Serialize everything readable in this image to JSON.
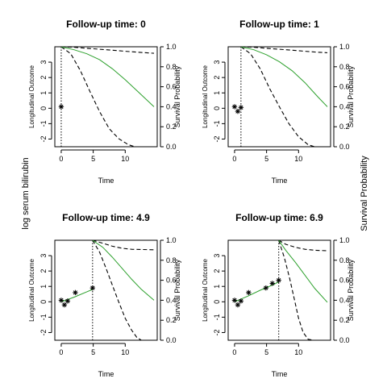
{
  "outer_left_label": "log serum bilirubin",
  "outer_right_label": "Survival Probability",
  "chart_data": [
    {
      "type": "line",
      "title": "Follow-up time: 0",
      "xlabel": "Time",
      "ylabel_left": "Longitudinal Outcome",
      "ylabel_right": "Survival Probability",
      "xlim": [
        -1,
        15
      ],
      "ylim_left": [
        -2.5,
        4
      ],
      "ylim_right": [
        0,
        1
      ],
      "x_ticks": [
        0,
        5,
        10
      ],
      "y_ticks_left": [
        -2,
        -1,
        0,
        1,
        2,
        3
      ],
      "y_ticks_right": [
        0.0,
        0.2,
        0.4,
        0.6,
        0.8,
        1.0
      ],
      "followup_time": 0,
      "observations": [
        {
          "x": 0,
          "y": 0.1
        }
      ],
      "longitudinal_fit": [],
      "survival_mean": [
        [
          0,
          1.0
        ],
        [
          2,
          0.97
        ],
        [
          4,
          0.93
        ],
        [
          6,
          0.87
        ],
        [
          8,
          0.78
        ],
        [
          10,
          0.67
        ],
        [
          12,
          0.55
        ],
        [
          14,
          0.43
        ],
        [
          14.5,
          0.4
        ]
      ],
      "survival_upper": [
        [
          0,
          1.0
        ],
        [
          2,
          0.995
        ],
        [
          4,
          0.985
        ],
        [
          6,
          0.975
        ],
        [
          8,
          0.965
        ],
        [
          10,
          0.955
        ],
        [
          12,
          0.945
        ],
        [
          14.5,
          0.935
        ]
      ],
      "survival_lower": [
        [
          0,
          1.0
        ],
        [
          1.5,
          0.93
        ],
        [
          3,
          0.76
        ],
        [
          4.5,
          0.55
        ],
        [
          6,
          0.35
        ],
        [
          7.5,
          0.18
        ],
        [
          9,
          0.08
        ],
        [
          10.5,
          0.02
        ],
        [
          11.5,
          0.0
        ]
      ]
    },
    {
      "type": "line",
      "title": "Follow-up time: 1",
      "xlabel": "Time",
      "ylabel_left": "Longitudinal Outcome",
      "ylabel_right": "Survival Probability",
      "xlim": [
        -1,
        15
      ],
      "ylim_left": [
        -2.5,
        4
      ],
      "ylim_right": [
        0,
        1
      ],
      "x_ticks": [
        0,
        5,
        10
      ],
      "y_ticks_left": [
        -2,
        -1,
        0,
        1,
        2,
        3
      ],
      "y_ticks_right": [
        0.0,
        0.2,
        0.4,
        0.6,
        0.8,
        1.0
      ],
      "followup_time": 1,
      "observations": [
        {
          "x": 0,
          "y": 0.1
        },
        {
          "x": 0.5,
          "y": -0.2
        },
        {
          "x": 1,
          "y": 0.05
        }
      ],
      "longitudinal_fit": [],
      "survival_mean": [
        [
          1,
          1.0
        ],
        [
          3,
          0.97
        ],
        [
          5,
          0.92
        ],
        [
          7,
          0.85
        ],
        [
          9,
          0.76
        ],
        [
          11,
          0.64
        ],
        [
          13,
          0.5
        ],
        [
          14.5,
          0.4
        ]
      ],
      "survival_upper": [
        [
          1,
          1.0
        ],
        [
          3,
          0.995
        ],
        [
          5,
          0.985
        ],
        [
          7,
          0.975
        ],
        [
          9,
          0.965
        ],
        [
          11,
          0.955
        ],
        [
          13,
          0.945
        ],
        [
          14.5,
          0.94
        ]
      ],
      "survival_lower": [
        [
          1,
          1.0
        ],
        [
          2.5,
          0.93
        ],
        [
          4,
          0.78
        ],
        [
          5.5,
          0.58
        ],
        [
          7,
          0.4
        ],
        [
          8.5,
          0.23
        ],
        [
          10,
          0.1
        ],
        [
          11.5,
          0.02
        ],
        [
          12.5,
          0.0
        ]
      ]
    },
    {
      "type": "line",
      "title": "Follow-up time: 4.9",
      "xlabel": "Time",
      "ylabel_left": "Longitudinal Outcome",
      "ylabel_right": "Survival Probability",
      "xlim": [
        -1,
        15
      ],
      "ylim_left": [
        -2.5,
        4
      ],
      "ylim_right": [
        0,
        1
      ],
      "x_ticks": [
        0,
        5,
        10
      ],
      "y_ticks_left": [
        -2,
        -1,
        0,
        1,
        2,
        3
      ],
      "y_ticks_right": [
        0.0,
        0.2,
        0.4,
        0.6,
        0.8,
        1.0
      ],
      "followup_time": 4.9,
      "observations": [
        {
          "x": 0,
          "y": 0.1
        },
        {
          "x": 0.5,
          "y": -0.2
        },
        {
          "x": 1,
          "y": 0.05
        },
        {
          "x": 2.2,
          "y": 0.6
        },
        {
          "x": 4.9,
          "y": 0.9
        }
      ],
      "longitudinal_fit": [
        [
          0,
          0.0
        ],
        [
          2,
          0.3
        ],
        [
          4,
          0.65
        ],
        [
          4.9,
          0.8
        ]
      ],
      "survival_mean": [
        [
          4.9,
          1.0
        ],
        [
          6.5,
          0.93
        ],
        [
          8,
          0.83
        ],
        [
          9.5,
          0.72
        ],
        [
          11,
          0.61
        ],
        [
          12.5,
          0.51
        ],
        [
          14.5,
          0.4
        ]
      ],
      "survival_upper": [
        [
          4.9,
          1.0
        ],
        [
          6.5,
          0.97
        ],
        [
          8,
          0.94
        ],
        [
          9.5,
          0.92
        ],
        [
          11,
          0.91
        ],
        [
          14.5,
          0.905
        ]
      ],
      "survival_lower": [
        [
          4.9,
          1.0
        ],
        [
          6,
          0.88
        ],
        [
          7,
          0.72
        ],
        [
          8,
          0.55
        ],
        [
          9,
          0.38
        ],
        [
          10,
          0.22
        ],
        [
          11,
          0.1
        ],
        [
          11.8,
          0.03
        ],
        [
          12.5,
          0.0
        ]
      ]
    },
    {
      "type": "line",
      "title": "Follow-up time: 6.9",
      "xlabel": "Time",
      "ylabel_left": "Longitudinal Outcome",
      "ylabel_right": "Survival Probability",
      "xlim": [
        -1,
        15
      ],
      "ylim_left": [
        -2.5,
        4
      ],
      "ylim_right": [
        0,
        1
      ],
      "x_ticks": [
        0,
        5,
        10
      ],
      "y_ticks_left": [
        -2,
        -1,
        0,
        1,
        2,
        3
      ],
      "y_ticks_right": [
        0.0,
        0.2,
        0.4,
        0.6,
        0.8,
        1.0
      ],
      "followup_time": 6.9,
      "observations": [
        {
          "x": 0,
          "y": 0.1
        },
        {
          "x": 0.5,
          "y": -0.2
        },
        {
          "x": 1,
          "y": 0.05
        },
        {
          "x": 2.2,
          "y": 0.6
        },
        {
          "x": 4.9,
          "y": 0.9
        },
        {
          "x": 5.9,
          "y": 1.2
        },
        {
          "x": 6.9,
          "y": 1.4
        }
      ],
      "longitudinal_fit": [
        [
          0,
          0.0
        ],
        [
          2,
          0.35
        ],
        [
          4,
          0.75
        ],
        [
          6,
          1.1
        ],
        [
          6.9,
          1.3
        ]
      ],
      "survival_mean": [
        [
          6.9,
          1.0
        ],
        [
          8,
          0.9
        ],
        [
          9.5,
          0.78
        ],
        [
          11,
          0.65
        ],
        [
          12.5,
          0.52
        ],
        [
          14.5,
          0.38
        ]
      ],
      "survival_upper": [
        [
          6.9,
          1.0
        ],
        [
          8,
          0.96
        ],
        [
          9.5,
          0.93
        ],
        [
          11,
          0.91
        ],
        [
          12.5,
          0.9
        ],
        [
          14.5,
          0.895
        ]
      ],
      "survival_lower": [
        [
          6.9,
          1.0
        ],
        [
          7.8,
          0.82
        ],
        [
          8.6,
          0.62
        ],
        [
          9.3,
          0.42
        ],
        [
          10,
          0.22
        ],
        [
          10.7,
          0.08
        ],
        [
          11.5,
          0.01
        ],
        [
          12.3,
          0.0
        ]
      ]
    }
  ]
}
